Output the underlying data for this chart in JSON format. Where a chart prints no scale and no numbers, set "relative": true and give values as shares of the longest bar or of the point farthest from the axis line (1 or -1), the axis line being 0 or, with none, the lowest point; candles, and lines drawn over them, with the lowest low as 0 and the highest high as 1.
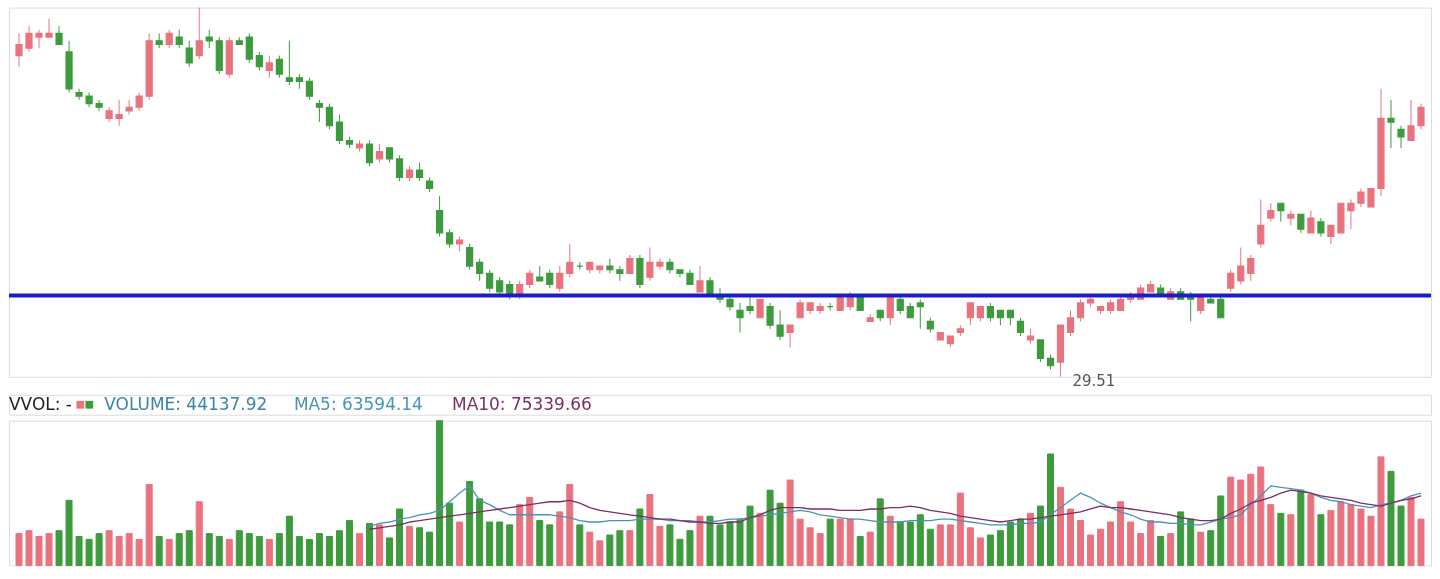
{
  "chart_data": [
    {
      "type": "candlestick",
      "relative": true,
      "categories": [
        null,
        null,
        null,
        null,
        null,
        null,
        null,
        null,
        null,
        null,
        null,
        null,
        null,
        null,
        null,
        null,
        null,
        null,
        null,
        null,
        null,
        null,
        null,
        null,
        null,
        null,
        null,
        null,
        null,
        null,
        null,
        null,
        null,
        null,
        null,
        null,
        null,
        null,
        null,
        null,
        null,
        null,
        null,
        null,
        null,
        null,
        null,
        null,
        null,
        null,
        null,
        null,
        null,
        null,
        null,
        null,
        null,
        null,
        null,
        null,
        null,
        null,
        null,
        null,
        null,
        null,
        null,
        null,
        null,
        null,
        null,
        null,
        null,
        null,
        null,
        null,
        null,
        null,
        null,
        null,
        null,
        null,
        null,
        null,
        null,
        null,
        null,
        null,
        null,
        null,
        null,
        null,
        null,
        null,
        null,
        null,
        null,
        null,
        null,
        null,
        null,
        null,
        null,
        null,
        null,
        null,
        null,
        null,
        null,
        null,
        null,
        null,
        null,
        null,
        null,
        null,
        null,
        null,
        null,
        null,
        null,
        null,
        null,
        null,
        null,
        null,
        null,
        null,
        null,
        null,
        null,
        null,
        null,
        null,
        null,
        null,
        null,
        null,
        null,
        null,
        null
      ],
      "colors": [
        "#e8737f",
        "#e8737f",
        "#e8737f",
        "#e8737f",
        "#3d9a3d",
        "#3d9a3d",
        "#3d9a3d",
        "#3d9a3d",
        "#3d9a3d",
        "#e8737f",
        "#e8737f",
        "#e8737f",
        "#e8737f",
        "#e8737f",
        "#3d9a3d",
        "#e8737f",
        "#3d9a3d",
        "#3d9a3d",
        "#e8737f",
        "#3d9a3d",
        "#3d9a3d",
        "#e8737f",
        "#3d9a3d",
        "#3d9a3d",
        "#3d9a3d",
        "#e8737f",
        "#3d9a3d",
        "#3d9a3d",
        "#3d9a3d",
        "#3d9a3d",
        "#3d9a3d",
        "#3d9a3d",
        "#3d9a3d",
        "#3d9a3d",
        "#e8737f",
        "#3d9a3d",
        "#e8737f",
        "#3d9a3d",
        "#3d9a3d",
        "#e8737f",
        "#3d9a3d",
        "#3d9a3d",
        "#3d9a3d",
        "#3d9a3d",
        "#e8737f",
        "#3d9a3d",
        "#3d9a3d",
        "#3d9a3d",
        "#3d9a3d",
        "#3d9a3d",
        "#e8737f",
        "#e8737f",
        "#3d9a3d",
        "#3d9a3d",
        "#e8737f",
        "#e8737f",
        "#3d9a3d",
        "#e8737f",
        "#e8737f",
        "#3d9a3d",
        "#3d9a3d",
        "#e8737f",
        "#3d9a3d",
        "#e8737f",
        "#e8737f",
        "#3d9a3d",
        "#3d9a3d",
        "#3d9a3d",
        "#e8737f",
        "#3d9a3d",
        "#3d9a3d",
        "#3d9a3d",
        "#3d9a3d",
        "#3d9a3d",
        "#e8737f",
        "#3d9a3d",
        "#3d9a3d",
        "#e8737f",
        "#e8737f",
        "#e8737f",
        "#e8737f",
        "#3d9a3d",
        "#e8737f",
        "#e8737f",
        "#3d9a3d",
        "#e8737f",
        "#3d9a3d",
        "#e8737f",
        "#3d9a3d",
        "#3d9a3d",
        "#3d9a3d",
        "#3d9a3d",
        "#e8737f",
        "#e8737f",
        "#e8737f",
        "#e8737f",
        "#e8737f",
        "#3d9a3d",
        "#3d9a3d",
        "#3d9a3d",
        "#3d9a3d",
        "#e8737f",
        "#3d9a3d",
        "#3d9a3d",
        "#e8737f",
        "#e8737f",
        "#e8737f",
        "#e8737f",
        "#e8737f",
        "#e8737f",
        "#e8737f",
        "#e8737f",
        "#e8737f",
        "#e8737f",
        "#3d9a3d",
        "#e8737f",
        "#3d9a3d",
        "#3d9a3d",
        "#e8737f",
        "#3d9a3d",
        "#3d9a3d",
        "#e8737f",
        "#e8737f",
        "#e8737f",
        "#e8737f",
        "#e8737f",
        "#3d9a3d",
        "#e8737f",
        "#3d9a3d",
        "#e8737f",
        "#3d9a3d",
        "#e8737f",
        "#e8737f",
        "#e8737f",
        "#e8737f",
        "#e8737f",
        "#e8737f",
        "#3d9a3d",
        "#3d9a3d",
        "#e8737f",
        "#e8737f"
      ],
      "ohlc": [
        [
          0.87,
          0.93,
          0.84,
          0.9
        ],
        [
          0.89,
          0.95,
          0.88,
          0.93
        ],
        [
          0.92,
          0.94,
          0.89,
          0.93
        ],
        [
          0.92,
          0.97,
          0.92,
          0.93
        ],
        [
          0.93,
          0.95,
          0.9,
          0.9
        ],
        [
          0.88,
          0.91,
          0.77,
          0.78
        ],
        [
          0.77,
          0.78,
          0.75,
          0.76
        ],
        [
          0.76,
          0.77,
          0.73,
          0.74
        ],
        [
          0.74,
          0.75,
          0.72,
          0.73
        ],
        [
          0.7,
          0.73,
          0.69,
          0.72
        ],
        [
          0.7,
          0.75,
          0.68,
          0.71
        ],
        [
          0.72,
          0.75,
          0.71,
          0.73
        ],
        [
          0.73,
          0.77,
          0.72,
          0.76
        ],
        [
          0.76,
          0.93,
          0.75,
          0.91
        ],
        [
          0.91,
          0.93,
          0.89,
          0.9
        ],
        [
          0.9,
          0.94,
          0.89,
          0.93
        ],
        [
          0.92,
          0.94,
          0.89,
          0.9
        ],
        [
          0.89,
          0.91,
          0.84,
          0.85
        ],
        [
          0.87,
          1.0,
          0.86,
          0.91
        ],
        [
          0.92,
          0.94,
          0.89,
          0.91
        ],
        [
          0.91,
          0.92,
          0.82,
          0.83
        ],
        [
          0.82,
          0.92,
          0.81,
          0.91
        ],
        [
          0.91,
          0.92,
          0.9,
          0.9
        ],
        [
          0.92,
          0.93,
          0.85,
          0.86
        ],
        [
          0.87,
          0.88,
          0.83,
          0.84
        ],
        [
          0.83,
          0.87,
          0.81,
          0.85
        ],
        [
          0.86,
          0.87,
          0.81,
          0.82
        ],
        [
          0.81,
          0.91,
          0.79,
          0.8
        ],
        [
          0.81,
          0.82,
          0.78,
          0.8
        ],
        [
          0.8,
          0.81,
          0.75,
          0.76
        ],
        [
          0.74,
          0.75,
          0.69,
          0.73
        ],
        [
          0.73,
          0.74,
          0.67,
          0.68
        ],
        [
          0.69,
          0.71,
          0.63,
          0.64
        ],
        [
          0.64,
          0.65,
          0.62,
          0.63
        ],
        [
          0.62,
          0.64,
          0.61,
          0.63
        ],
        [
          0.63,
          0.64,
          0.57,
          0.58
        ],
        [
          0.59,
          0.63,
          0.58,
          0.61
        ],
        [
          0.62,
          0.62,
          0.58,
          0.59
        ],
        [
          0.59,
          0.6,
          0.53,
          0.54
        ],
        [
          0.54,
          0.57,
          0.53,
          0.56
        ],
        [
          0.56,
          0.58,
          0.53,
          0.54
        ],
        [
          0.53,
          0.54,
          0.5,
          0.51
        ],
        [
          0.45,
          0.49,
          0.38,
          0.39
        ],
        [
          0.39,
          0.4,
          0.35,
          0.36
        ],
        [
          0.36,
          0.38,
          0.34,
          0.37
        ],
        [
          0.35,
          0.36,
          0.29,
          0.3
        ],
        [
          0.31,
          0.32,
          0.26,
          0.28
        ],
        [
          0.28,
          0.29,
          0.23,
          0.24
        ],
        [
          0.26,
          0.27,
          0.22,
          0.23
        ],
        [
          0.25,
          0.26,
          0.21,
          0.22
        ],
        [
          0.22,
          0.26,
          0.21,
          0.25
        ],
        [
          0.25,
          0.29,
          0.24,
          0.28
        ],
        [
          0.27,
          0.3,
          0.26,
          0.26
        ],
        [
          0.28,
          0.29,
          0.24,
          0.25
        ],
        [
          0.24,
          0.3,
          0.23,
          0.28
        ],
        [
          0.28,
          0.36,
          0.27,
          0.31
        ],
        [
          0.3,
          0.31,
          0.29,
          0.3
        ],
        [
          0.29,
          0.31,
          0.28,
          0.31
        ],
        [
          0.29,
          0.3,
          0.28,
          0.3
        ],
        [
          0.3,
          0.32,
          0.28,
          0.29
        ],
        [
          0.29,
          0.3,
          0.26,
          0.28
        ],
        [
          0.28,
          0.33,
          0.28,
          0.32
        ],
        [
          0.32,
          0.33,
          0.24,
          0.25
        ],
        [
          0.27,
          0.35,
          0.26,
          0.31
        ],
        [
          0.3,
          0.32,
          0.29,
          0.31
        ],
        [
          0.31,
          0.32,
          0.28,
          0.29
        ],
        [
          0.29,
          0.29,
          0.27,
          0.28
        ],
        [
          0.28,
          0.29,
          0.25,
          0.25
        ],
        [
          0.23,
          0.3,
          0.23,
          0.26
        ],
        [
          0.26,
          0.27,
          0.22,
          0.22
        ],
        [
          0.22,
          0.24,
          0.2,
          0.21
        ],
        [
          0.21,
          0.22,
          0.18,
          0.19
        ],
        [
          0.18,
          0.2,
          0.12,
          0.16
        ],
        [
          0.19,
          0.22,
          0.17,
          0.18
        ],
        [
          0.16,
          0.21,
          0.16,
          0.21
        ],
        [
          0.19,
          0.2,
          0.13,
          0.14
        ],
        [
          0.14,
          0.18,
          0.1,
          0.11
        ],
        [
          0.12,
          0.14,
          0.08,
          0.14
        ],
        [
          0.16,
          0.21,
          0.16,
          0.2
        ],
        [
          0.18,
          0.2,
          0.17,
          0.2
        ],
        [
          0.18,
          0.2,
          0.17,
          0.19
        ],
        [
          0.19,
          0.2,
          0.18,
          0.19
        ],
        [
          0.18,
          0.22,
          0.18,
          0.22
        ],
        [
          0.19,
          0.23,
          0.18,
          0.22
        ],
        [
          0.22,
          0.22,
          0.18,
          0.18
        ],
        [
          0.15,
          0.17,
          0.15,
          0.16
        ],
        [
          0.18,
          0.18,
          0.15,
          0.16
        ],
        [
          0.16,
          0.22,
          0.14,
          0.22
        ],
        [
          0.21,
          0.22,
          0.17,
          0.18
        ],
        [
          0.19,
          0.2,
          0.16,
          0.16
        ],
        [
          0.2,
          0.21,
          0.13,
          0.19
        ],
        [
          0.15,
          0.16,
          0.12,
          0.13
        ],
        [
          0.1,
          0.12,
          0.1,
          0.12
        ],
        [
          0.09,
          0.11,
          0.08,
          0.11
        ],
        [
          0.12,
          0.14,
          0.11,
          0.13
        ],
        [
          0.16,
          0.2,
          0.14,
          0.2
        ],
        [
          0.16,
          0.19,
          0.15,
          0.19
        ],
        [
          0.19,
          0.2,
          0.15,
          0.16
        ],
        [
          0.18,
          0.18,
          0.14,
          0.16
        ],
        [
          0.18,
          0.18,
          0.14,
          0.16
        ],
        [
          0.15,
          0.16,
          0.11,
          0.12
        ],
        [
          0.1,
          0.13,
          0.09,
          0.11
        ],
        [
          0.1,
          0.1,
          0.04,
          0.05
        ],
        [
          0.05,
          0.06,
          0.02,
          0.03
        ],
        [
          0.04,
          0.14,
          0.0,
          0.14
        ],
        [
          0.12,
          0.18,
          0.11,
          0.16
        ],
        [
          0.16,
          0.21,
          0.15,
          0.2
        ],
        [
          0.2,
          0.22,
          0.19,
          0.21
        ],
        [
          0.18,
          0.19,
          0.17,
          0.19
        ],
        [
          0.18,
          0.21,
          0.17,
          0.2
        ],
        [
          0.18,
          0.22,
          0.18,
          0.21
        ],
        [
          0.21,
          0.23,
          0.2,
          0.22
        ],
        [
          0.21,
          0.25,
          0.21,
          0.24
        ],
        [
          0.23,
          0.26,
          0.23,
          0.25
        ],
        [
          0.24,
          0.25,
          0.22,
          0.22
        ],
        [
          0.21,
          0.24,
          0.21,
          0.23
        ],
        [
          0.23,
          0.24,
          0.21,
          0.21
        ],
        [
          0.22,
          0.23,
          0.15,
          0.21
        ],
        [
          0.18,
          0.22,
          0.17,
          0.22
        ],
        [
          0.21,
          0.22,
          0.2,
          0.2
        ],
        [
          0.21,
          0.22,
          0.16,
          0.16
        ],
        [
          0.24,
          0.29,
          0.23,
          0.28
        ],
        [
          0.26,
          0.35,
          0.25,
          0.3
        ],
        [
          0.28,
          0.33,
          0.26,
          0.32
        ],
        [
          0.36,
          0.48,
          0.35,
          0.41
        ],
        [
          0.43,
          0.47,
          0.42,
          0.45
        ],
        [
          0.47,
          0.47,
          0.42,
          0.45
        ],
        [
          0.43,
          0.45,
          0.41,
          0.44
        ],
        [
          0.44,
          0.44,
          0.39,
          0.4
        ],
        [
          0.39,
          0.45,
          0.39,
          0.43
        ],
        [
          0.42,
          0.43,
          0.38,
          0.39
        ],
        [
          0.38,
          0.41,
          0.36,
          0.41
        ],
        [
          0.39,
          0.47,
          0.39,
          0.47
        ],
        [
          0.45,
          0.48,
          0.4,
          0.47
        ],
        [
          0.47,
          0.51,
          0.46,
          0.5
        ],
        [
          0.46,
          0.51,
          0.46,
          0.51
        ],
        [
          0.51,
          0.78,
          0.49,
          0.7
        ],
        [
          0.7,
          0.75,
          0.62,
          0.69
        ],
        [
          0.67,
          0.68,
          0.62,
          0.65
        ],
        [
          0.64,
          0.75,
          0.64,
          0.68
        ],
        [
          0.68,
          0.74,
          0.67,
          0.73
        ]
      ],
      "ref_lines": [
        {
          "axis": "y",
          "value": 0.22,
          "color": "#1c1cc8"
        }
      ],
      "annotations": [
        "29.51"
      ]
    },
    {
      "type": "bar",
      "relative": true,
      "title": "VVOL: -",
      "categories": [
        null,
        null,
        null,
        null,
        null,
        null,
        null,
        null,
        null,
        null,
        null,
        null,
        null,
        null,
        null,
        null,
        null,
        null,
        null,
        null,
        null,
        null,
        null,
        null,
        null,
        null,
        null,
        null,
        null,
        null,
        null,
        null,
        null,
        null,
        null,
        null,
        null,
        null,
        null,
        null,
        null,
        null,
        null,
        null,
        null,
        null,
        null,
        null,
        null,
        null,
        null,
        null,
        null,
        null,
        null,
        null,
        null,
        null,
        null,
        null,
        null,
        null,
        null,
        null,
        null,
        null,
        null,
        null,
        null,
        null,
        null,
        null,
        null,
        null,
        null,
        null,
        null,
        null,
        null,
        null,
        null,
        null,
        null,
        null,
        null,
        null,
        null,
        null,
        null,
        null,
        null,
        null,
        null,
        null,
        null,
        null,
        null,
        null,
        null,
        null,
        null,
        null,
        null,
        null,
        null,
        null,
        null,
        null,
        null,
        null,
        null,
        null,
        null,
        null,
        null,
        null,
        null,
        null,
        null,
        null,
        null,
        null,
        null,
        null,
        null,
        null,
        null,
        null,
        null,
        null,
        null,
        null,
        null,
        null,
        null,
        null,
        null,
        null,
        null,
        null,
        null
      ],
      "series": [
        {
          "name": "VOLUME: 44137.92",
          "colors": [
            "#e8737f",
            "#e8737f",
            "#e8737f",
            "#e8737f",
            "#3d9a3d",
            "#3d9a3d",
            "#3d9a3d",
            "#3d9a3d",
            "#3d9a3d",
            "#e8737f",
            "#e8737f",
            "#e8737f",
            "#e8737f",
            "#e8737f",
            "#3d9a3d",
            "#e8737f",
            "#3d9a3d",
            "#3d9a3d",
            "#e8737f",
            "#3d9a3d",
            "#3d9a3d",
            "#e8737f",
            "#3d9a3d",
            "#3d9a3d",
            "#3d9a3d",
            "#e8737f",
            "#3d9a3d",
            "#3d9a3d",
            "#3d9a3d",
            "#3d9a3d",
            "#3d9a3d",
            "#3d9a3d",
            "#3d9a3d",
            "#3d9a3d",
            "#e8737f",
            "#3d9a3d",
            "#e8737f",
            "#3d9a3d",
            "#3d9a3d",
            "#e8737f",
            "#3d9a3d",
            "#3d9a3d",
            "#3d9a3d",
            "#3d9a3d",
            "#e8737f",
            "#3d9a3d",
            "#3d9a3d",
            "#3d9a3d",
            "#3d9a3d",
            "#3d9a3d",
            "#e8737f",
            "#e8737f",
            "#3d9a3d",
            "#3d9a3d",
            "#e8737f",
            "#e8737f",
            "#3d9a3d",
            "#e8737f",
            "#e8737f",
            "#3d9a3d",
            "#3d9a3d",
            "#e8737f",
            "#3d9a3d",
            "#e8737f",
            "#e8737f",
            "#3d9a3d",
            "#3d9a3d",
            "#3d9a3d",
            "#e8737f",
            "#3d9a3d",
            "#3d9a3d",
            "#3d9a3d",
            "#3d9a3d",
            "#3d9a3d",
            "#e8737f",
            "#3d9a3d",
            "#3d9a3d",
            "#e8737f",
            "#e8737f",
            "#e8737f",
            "#e8737f",
            "#3d9a3d",
            "#e8737f",
            "#e8737f",
            "#3d9a3d",
            "#e8737f",
            "#3d9a3d",
            "#e8737f",
            "#3d9a3d",
            "#3d9a3d",
            "#3d9a3d",
            "#3d9a3d",
            "#e8737f",
            "#e8737f",
            "#e8737f",
            "#e8737f",
            "#e8737f",
            "#3d9a3d",
            "#3d9a3d",
            "#3d9a3d",
            "#3d9a3d",
            "#e8737f",
            "#3d9a3d",
            "#3d9a3d",
            "#e8737f",
            "#e8737f",
            "#e8737f",
            "#e8737f",
            "#e8737f",
            "#e8737f",
            "#e8737f",
            "#e8737f",
            "#e8737f",
            "#e8737f",
            "#3d9a3d",
            "#e8737f",
            "#3d9a3d",
            "#3d9a3d",
            "#e8737f",
            "#3d9a3d",
            "#3d9a3d",
            "#e8737f",
            "#e8737f",
            "#e8737f",
            "#e8737f",
            "#e8737f",
            "#3d9a3d",
            "#e8737f",
            "#3d9a3d",
            "#e8737f",
            "#3d9a3d",
            "#e8737f",
            "#e8737f",
            "#e8737f",
            "#e8737f",
            "#e8737f",
            "#e8737f",
            "#3d9a3d",
            "#3d9a3d",
            "#e8737f",
            "#e8737f"
          ],
          "values": [
            0.22,
            0.24,
            0.2,
            0.22,
            0.24,
            0.45,
            0.2,
            0.18,
            0.22,
            0.24,
            0.2,
            0.22,
            0.18,
            0.56,
            0.2,
            0.18,
            0.22,
            0.24,
            0.44,
            0.22,
            0.2,
            0.18,
            0.24,
            0.22,
            0.2,
            0.18,
            0.22,
            0.34,
            0.2,
            0.18,
            0.22,
            0.2,
            0.24,
            0.31,
            0.22,
            0.29,
            0.28,
            0.19,
            0.39,
            0.27,
            0.26,
            0.23,
            1.0,
            0.43,
            0.3,
            0.58,
            0.46,
            0.3,
            0.3,
            0.28,
            0.42,
            0.47,
            0.31,
            0.28,
            0.37,
            0.56,
            0.28,
            0.23,
            0.17,
            0.21,
            0.24,
            0.24,
            0.39,
            0.49,
            0.27,
            0.28,
            0.18,
            0.24,
            0.34,
            0.34,
            0.28,
            0.3,
            0.32,
            0.41,
            0.36,
            0.52,
            0.43,
            0.59,
            0.32,
            0.26,
            0.22,
            0.32,
            0.32,
            0.32,
            0.2,
            0.23,
            0.46,
            0.34,
            0.3,
            0.3,
            0.35,
            0.25,
            0.28,
            0.28,
            0.5,
            0.26,
            0.19,
            0.21,
            0.24,
            0.3,
            0.32,
            0.36,
            0.41,
            0.77,
            0.54,
            0.39,
            0.31,
            0.21,
            0.25,
            0.3,
            0.44,
            0.3,
            0.22,
            0.31,
            0.2,
            0.22,
            0.37,
            0.32,
            0.23,
            0.24,
            0.48,
            0.61,
            0.59,
            0.63,
            0.68,
            0.42,
            0.36,
            0.35,
            0.52,
            0.49,
            0.35,
            0.38,
            0.44,
            0.42,
            0.39,
            0.34,
            0.75,
            0.65,
            0.41,
            0.47,
            0.32
          ]
        },
        {
          "type": "line",
          "name": "MA5: 63594.14",
          "color": "#4a93b8",
          "values": [
            null,
            null,
            null,
            null,
            null,
            null,
            null,
            null,
            null,
            null,
            null,
            null,
            null,
            null,
            null,
            null,
            null,
            null,
            null,
            null,
            null,
            null,
            null,
            null,
            null,
            null,
            null,
            null,
            null,
            null,
            null,
            null,
            null,
            null,
            null,
            0.27,
            0.29,
            0.3,
            0.32,
            0.33,
            0.35,
            0.36,
            0.38,
            0.44,
            0.5,
            0.55,
            0.45,
            0.42,
            0.38,
            0.35,
            0.35,
            0.35,
            0.35,
            0.35,
            0.34,
            0.33,
            0.31,
            0.3,
            0.3,
            0.31,
            0.31,
            0.31,
            0.32,
            0.32,
            0.32,
            0.31,
            0.31,
            0.31,
            0.3,
            0.3,
            0.31,
            0.32,
            0.32,
            0.33,
            0.34,
            0.35,
            0.36,
            0.37,
            0.38,
            0.37,
            0.35,
            0.34,
            0.33,
            0.32,
            0.32,
            0.31,
            0.3,
            0.3,
            0.3,
            0.31,
            0.31,
            0.31,
            0.32,
            0.32,
            0.31,
            0.3,
            0.29,
            0.28,
            0.28,
            0.28,
            0.29,
            0.29,
            0.3,
            0.35,
            0.4,
            0.45,
            0.5,
            0.47,
            0.43,
            0.4,
            0.37,
            0.35,
            0.32,
            0.3,
            0.3,
            0.29,
            0.29,
            0.28,
            0.28,
            0.3,
            0.32,
            0.33,
            0.35,
            0.42,
            0.48,
            0.55,
            0.54,
            0.53,
            0.52,
            0.5,
            0.47,
            0.45,
            0.44,
            0.42,
            0.41,
            0.4,
            0.42,
            0.43,
            0.45,
            0.48,
            0.5
          ]
        },
        {
          "type": "line",
          "name": "MA10: 75339.66",
          "color": "#7b2f63",
          "values": [
            null,
            null,
            null,
            null,
            null,
            null,
            null,
            null,
            null,
            null,
            null,
            null,
            null,
            null,
            null,
            null,
            null,
            null,
            null,
            null,
            null,
            null,
            null,
            null,
            null,
            null,
            null,
            null,
            null,
            null,
            null,
            null,
            null,
            null,
            null,
            0.25,
            0.26,
            0.27,
            0.28,
            0.3,
            0.31,
            0.32,
            0.33,
            0.34,
            0.35,
            0.36,
            0.37,
            0.38,
            0.39,
            0.4,
            0.41,
            0.42,
            0.43,
            0.44,
            0.44,
            0.45,
            0.43,
            0.4,
            0.38,
            0.37,
            0.36,
            0.35,
            0.34,
            0.33,
            0.32,
            0.32,
            0.31,
            0.3,
            0.3,
            0.29,
            0.29,
            0.3,
            0.3,
            0.33,
            0.35,
            0.38,
            0.4,
            0.4,
            0.4,
            0.39,
            0.39,
            0.39,
            0.38,
            0.38,
            0.38,
            0.39,
            0.39,
            0.4,
            0.4,
            0.41,
            0.4,
            0.38,
            0.37,
            0.36,
            0.34,
            0.33,
            0.32,
            0.31,
            0.3,
            0.31,
            0.32,
            0.32,
            0.33,
            0.34,
            0.35,
            0.36,
            0.37,
            0.39,
            0.41,
            0.4,
            0.4,
            0.39,
            0.38,
            0.37,
            0.36,
            0.35,
            0.33,
            0.32,
            0.31,
            0.31,
            0.32,
            0.36,
            0.39,
            0.43,
            0.45,
            0.47,
            0.5,
            0.52,
            0.51,
            0.5,
            0.48,
            0.47,
            0.46,
            0.45,
            0.43,
            0.42,
            0.41,
            0.43,
            0.45,
            0.46,
            0.48
          ]
        }
      ]
    }
  ]
}
